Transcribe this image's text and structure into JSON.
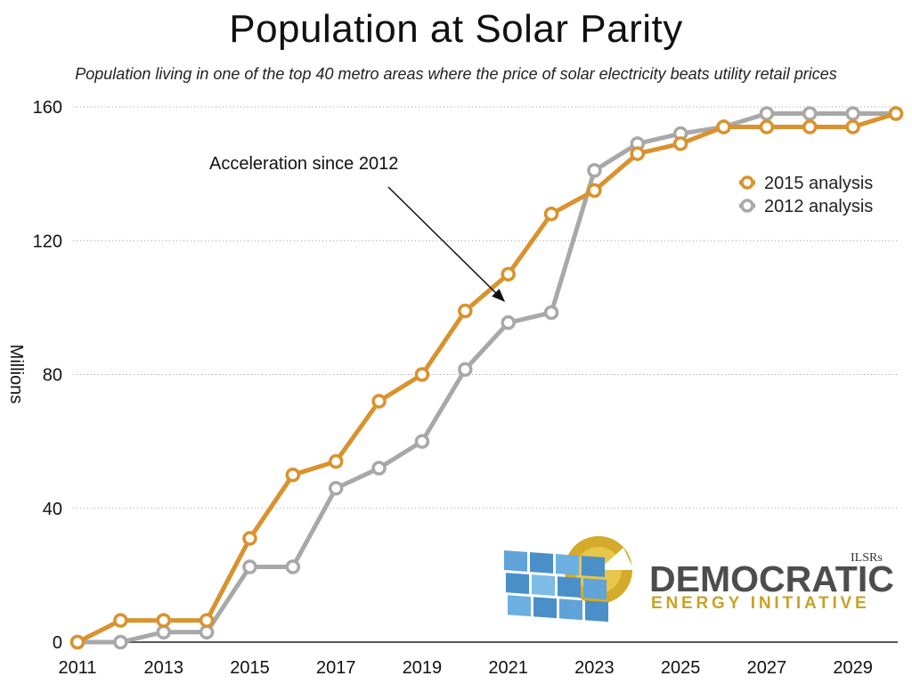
{
  "chart_data": {
    "type": "line",
    "title": "Population at Solar Parity",
    "subtitle": "Population living in one of the top 40 metro areas where the price of solar electricity beats utility retail prices",
    "xlabel": "",
    "ylabel": "Millions",
    "xlim": [
      2011,
      2030
    ],
    "ylim": [
      0,
      160
    ],
    "x_ticks": [
      2011,
      2013,
      2015,
      2017,
      2019,
      2021,
      2023,
      2025,
      2027,
      2029
    ],
    "y_ticks": [
      0,
      40,
      80,
      120,
      160
    ],
    "grid": "horizontal dotted",
    "legend_position": "top-right",
    "x": [
      2011,
      2012,
      2013,
      2014,
      2015,
      2016,
      2017,
      2018,
      2019,
      2020,
      2021,
      2022,
      2023,
      2024,
      2025,
      2026,
      2027,
      2028,
      2029,
      2030
    ],
    "series": [
      {
        "name": "2015 analysis",
        "color": "#D9922E",
        "values": [
          0,
          6.5,
          6.5,
          6.5,
          31,
          50,
          54,
          72,
          80,
          99,
          110,
          128,
          135,
          146,
          149,
          154,
          154,
          154,
          154,
          158
        ]
      },
      {
        "name": "2012 analysis",
        "color": "#A8A8A8",
        "values": [
          0,
          0,
          3,
          3,
          22.5,
          22.5,
          46,
          52,
          60,
          81.5,
          95.5,
          98.5,
          141,
          149,
          152,
          154,
          158,
          158,
          158,
          158
        ]
      }
    ],
    "annotations": [
      {
        "text": "Acceleration since 2012",
        "arrow_to": [
          2021,
          102
        ]
      }
    ]
  },
  "logo": {
    "line1": "DEMOCRATIC",
    "line2": "ENERGY INITIATIVE",
    "badge": "ILSRs",
    "colors": {
      "dark": "#4D4D4D",
      "gold": "#C9A227",
      "blue": "#4A8FC7"
    }
  }
}
